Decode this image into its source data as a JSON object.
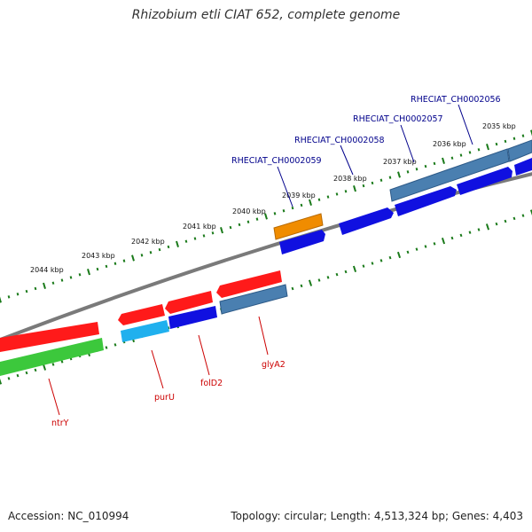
{
  "title": "Rhizobium etli CIAT 652, complete genome",
  "accession": "Accession: NC_010994",
  "topology": "Topology: circular; Length: 4,513,324 bp; Genes: 4,403",
  "colors": {
    "backbone": "#7a7a7a",
    "tick": "#1a7a1a",
    "label_top": "#00008b",
    "label_bottom": "#cc0000",
    "red": "#ff1a1a",
    "blue": "#1010e0",
    "steelblue": "#4a7fb0",
    "orange": "#f08c00",
    "cyan": "#20b0ee",
    "green": "#3cc83c"
  },
  "kbp_labels": [
    "2035 kbp",
    "2036 kbp",
    "2037 kbp",
    "2038 kbp",
    "2039 kbp",
    "2040 kbp",
    "2041 kbp",
    "2042 kbp",
    "2043 kbp",
    "2044 kbp"
  ],
  "gene_labels_top": [
    "RHECIAT_CH0002056",
    "RHECIAT_CH0002057",
    "RHECIAT_CH0002058",
    "RHECIAT_CH0002059"
  ],
  "gene_labels_bottom": [
    "glyA2",
    "folD2",
    "purU",
    "ntrY"
  ]
}
